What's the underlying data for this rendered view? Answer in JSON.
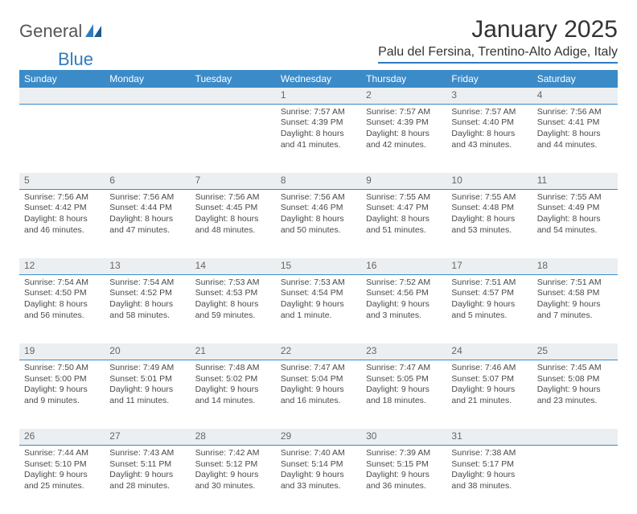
{
  "logo": {
    "general": "General",
    "blue": "Blue"
  },
  "title": "January 2025",
  "location": "Palu del Fersina, Trentino-Alto Adige, Italy",
  "colors": {
    "header_bg": "#3b8bc9",
    "header_text": "#ffffff",
    "daynum_bg": "#eceff1",
    "daynum_text": "#666666",
    "border": "#3b8bc9",
    "body_text": "#4a4a4a",
    "logo_blue": "#2f7bbf",
    "logo_gray": "#555555"
  },
  "weekdays": [
    "Sunday",
    "Monday",
    "Tuesday",
    "Wednesday",
    "Thursday",
    "Friday",
    "Saturday"
  ],
  "weeks": [
    [
      null,
      null,
      null,
      {
        "n": "1",
        "sr": "Sunrise: 7:57 AM",
        "ss": "Sunset: 4:39 PM",
        "dl1": "Daylight: 8 hours",
        "dl2": "and 41 minutes."
      },
      {
        "n": "2",
        "sr": "Sunrise: 7:57 AM",
        "ss": "Sunset: 4:39 PM",
        "dl1": "Daylight: 8 hours",
        "dl2": "and 42 minutes."
      },
      {
        "n": "3",
        "sr": "Sunrise: 7:57 AM",
        "ss": "Sunset: 4:40 PM",
        "dl1": "Daylight: 8 hours",
        "dl2": "and 43 minutes."
      },
      {
        "n": "4",
        "sr": "Sunrise: 7:56 AM",
        "ss": "Sunset: 4:41 PM",
        "dl1": "Daylight: 8 hours",
        "dl2": "and 44 minutes."
      }
    ],
    [
      {
        "n": "5",
        "sr": "Sunrise: 7:56 AM",
        "ss": "Sunset: 4:42 PM",
        "dl1": "Daylight: 8 hours",
        "dl2": "and 46 minutes."
      },
      {
        "n": "6",
        "sr": "Sunrise: 7:56 AM",
        "ss": "Sunset: 4:44 PM",
        "dl1": "Daylight: 8 hours",
        "dl2": "and 47 minutes."
      },
      {
        "n": "7",
        "sr": "Sunrise: 7:56 AM",
        "ss": "Sunset: 4:45 PM",
        "dl1": "Daylight: 8 hours",
        "dl2": "and 48 minutes."
      },
      {
        "n": "8",
        "sr": "Sunrise: 7:56 AM",
        "ss": "Sunset: 4:46 PM",
        "dl1": "Daylight: 8 hours",
        "dl2": "and 50 minutes."
      },
      {
        "n": "9",
        "sr": "Sunrise: 7:55 AM",
        "ss": "Sunset: 4:47 PM",
        "dl1": "Daylight: 8 hours",
        "dl2": "and 51 minutes."
      },
      {
        "n": "10",
        "sr": "Sunrise: 7:55 AM",
        "ss": "Sunset: 4:48 PM",
        "dl1": "Daylight: 8 hours",
        "dl2": "and 53 minutes."
      },
      {
        "n": "11",
        "sr": "Sunrise: 7:55 AM",
        "ss": "Sunset: 4:49 PM",
        "dl1": "Daylight: 8 hours",
        "dl2": "and 54 minutes."
      }
    ],
    [
      {
        "n": "12",
        "sr": "Sunrise: 7:54 AM",
        "ss": "Sunset: 4:50 PM",
        "dl1": "Daylight: 8 hours",
        "dl2": "and 56 minutes."
      },
      {
        "n": "13",
        "sr": "Sunrise: 7:54 AM",
        "ss": "Sunset: 4:52 PM",
        "dl1": "Daylight: 8 hours",
        "dl2": "and 58 minutes."
      },
      {
        "n": "14",
        "sr": "Sunrise: 7:53 AM",
        "ss": "Sunset: 4:53 PM",
        "dl1": "Daylight: 8 hours",
        "dl2": "and 59 minutes."
      },
      {
        "n": "15",
        "sr": "Sunrise: 7:53 AM",
        "ss": "Sunset: 4:54 PM",
        "dl1": "Daylight: 9 hours",
        "dl2": "and 1 minute."
      },
      {
        "n": "16",
        "sr": "Sunrise: 7:52 AM",
        "ss": "Sunset: 4:56 PM",
        "dl1": "Daylight: 9 hours",
        "dl2": "and 3 minutes."
      },
      {
        "n": "17",
        "sr": "Sunrise: 7:51 AM",
        "ss": "Sunset: 4:57 PM",
        "dl1": "Daylight: 9 hours",
        "dl2": "and 5 minutes."
      },
      {
        "n": "18",
        "sr": "Sunrise: 7:51 AM",
        "ss": "Sunset: 4:58 PM",
        "dl1": "Daylight: 9 hours",
        "dl2": "and 7 minutes."
      }
    ],
    [
      {
        "n": "19",
        "sr": "Sunrise: 7:50 AM",
        "ss": "Sunset: 5:00 PM",
        "dl1": "Daylight: 9 hours",
        "dl2": "and 9 minutes."
      },
      {
        "n": "20",
        "sr": "Sunrise: 7:49 AM",
        "ss": "Sunset: 5:01 PM",
        "dl1": "Daylight: 9 hours",
        "dl2": "and 11 minutes."
      },
      {
        "n": "21",
        "sr": "Sunrise: 7:48 AM",
        "ss": "Sunset: 5:02 PM",
        "dl1": "Daylight: 9 hours",
        "dl2": "and 14 minutes."
      },
      {
        "n": "22",
        "sr": "Sunrise: 7:47 AM",
        "ss": "Sunset: 5:04 PM",
        "dl1": "Daylight: 9 hours",
        "dl2": "and 16 minutes."
      },
      {
        "n": "23",
        "sr": "Sunrise: 7:47 AM",
        "ss": "Sunset: 5:05 PM",
        "dl1": "Daylight: 9 hours",
        "dl2": "and 18 minutes."
      },
      {
        "n": "24",
        "sr": "Sunrise: 7:46 AM",
        "ss": "Sunset: 5:07 PM",
        "dl1": "Daylight: 9 hours",
        "dl2": "and 21 minutes."
      },
      {
        "n": "25",
        "sr": "Sunrise: 7:45 AM",
        "ss": "Sunset: 5:08 PM",
        "dl1": "Daylight: 9 hours",
        "dl2": "and 23 minutes."
      }
    ],
    [
      {
        "n": "26",
        "sr": "Sunrise: 7:44 AM",
        "ss": "Sunset: 5:10 PM",
        "dl1": "Daylight: 9 hours",
        "dl2": "and 25 minutes."
      },
      {
        "n": "27",
        "sr": "Sunrise: 7:43 AM",
        "ss": "Sunset: 5:11 PM",
        "dl1": "Daylight: 9 hours",
        "dl2": "and 28 minutes."
      },
      {
        "n": "28",
        "sr": "Sunrise: 7:42 AM",
        "ss": "Sunset: 5:12 PM",
        "dl1": "Daylight: 9 hours",
        "dl2": "and 30 minutes."
      },
      {
        "n": "29",
        "sr": "Sunrise: 7:40 AM",
        "ss": "Sunset: 5:14 PM",
        "dl1": "Daylight: 9 hours",
        "dl2": "and 33 minutes."
      },
      {
        "n": "30",
        "sr": "Sunrise: 7:39 AM",
        "ss": "Sunset: 5:15 PM",
        "dl1": "Daylight: 9 hours",
        "dl2": "and 36 minutes."
      },
      {
        "n": "31",
        "sr": "Sunrise: 7:38 AM",
        "ss": "Sunset: 5:17 PM",
        "dl1": "Daylight: 9 hours",
        "dl2": "and 38 minutes."
      },
      null
    ]
  ]
}
